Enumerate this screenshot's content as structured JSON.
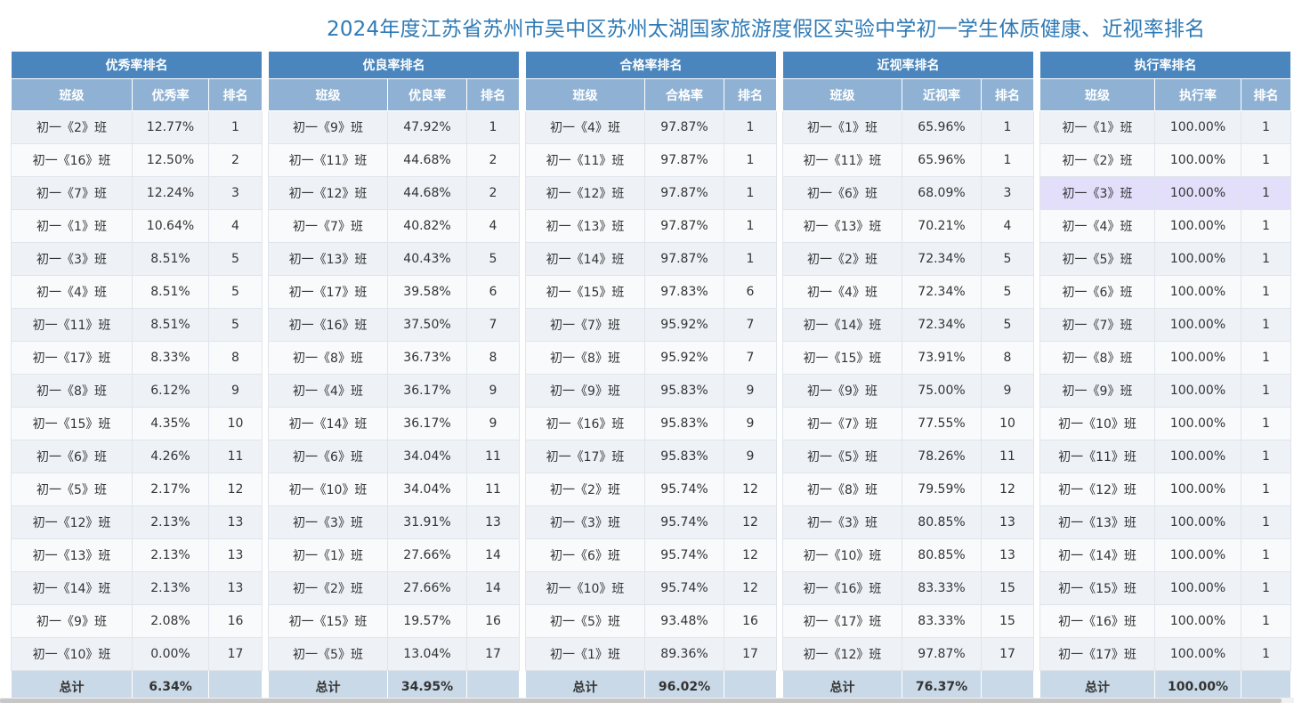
{
  "title": "2024年度江苏省苏州市吴中区苏州太湖国家旅游度假区实验中学初一学生体质健康、近视率排名",
  "total_label": "总计",
  "panels": [
    {
      "caption": "优秀率排名",
      "headers": [
        "班级",
        "优秀率",
        "排名"
      ],
      "rows": [
        [
          "初一《2》班",
          "12.77%",
          "1"
        ],
        [
          "初一《16》班",
          "12.50%",
          "2"
        ],
        [
          "初一《7》班",
          "12.24%",
          "3"
        ],
        [
          "初一《1》班",
          "10.64%",
          "4"
        ],
        [
          "初一《3》班",
          "8.51%",
          "5"
        ],
        [
          "初一《4》班",
          "8.51%",
          "5"
        ],
        [
          "初一《11》班",
          "8.51%",
          "5"
        ],
        [
          "初一《17》班",
          "8.33%",
          "8"
        ],
        [
          "初一《8》班",
          "6.12%",
          "9"
        ],
        [
          "初一《15》班",
          "4.35%",
          "10"
        ],
        [
          "初一《6》班",
          "4.26%",
          "11"
        ],
        [
          "初一《5》班",
          "2.17%",
          "12"
        ],
        [
          "初一《12》班",
          "2.13%",
          "13"
        ],
        [
          "初一《13》班",
          "2.13%",
          "13"
        ],
        [
          "初一《14》班",
          "2.13%",
          "13"
        ],
        [
          "初一《9》班",
          "2.08%",
          "16"
        ],
        [
          "初一《10》班",
          "0.00%",
          "17"
        ]
      ],
      "total": "6.34%"
    },
    {
      "caption": "优良率排名",
      "headers": [
        "班级",
        "优良率",
        "排名"
      ],
      "rows": [
        [
          "初一《9》班",
          "47.92%",
          "1"
        ],
        [
          "初一《11》班",
          "44.68%",
          "2"
        ],
        [
          "初一《12》班",
          "44.68%",
          "2"
        ],
        [
          "初一《7》班",
          "40.82%",
          "4"
        ],
        [
          "初一《13》班",
          "40.43%",
          "5"
        ],
        [
          "初一《17》班",
          "39.58%",
          "6"
        ],
        [
          "初一《16》班",
          "37.50%",
          "7"
        ],
        [
          "初一《8》班",
          "36.73%",
          "8"
        ],
        [
          "初一《4》班",
          "36.17%",
          "9"
        ],
        [
          "初一《14》班",
          "36.17%",
          "9"
        ],
        [
          "初一《6》班",
          "34.04%",
          "11"
        ],
        [
          "初一《10》班",
          "34.04%",
          "11"
        ],
        [
          "初一《3》班",
          "31.91%",
          "13"
        ],
        [
          "初一《1》班",
          "27.66%",
          "14"
        ],
        [
          "初一《2》班",
          "27.66%",
          "14"
        ],
        [
          "初一《15》班",
          "19.57%",
          "16"
        ],
        [
          "初一《5》班",
          "13.04%",
          "17"
        ]
      ],
      "total": "34.95%"
    },
    {
      "caption": "合格率排名",
      "headers": [
        "班级",
        "合格率",
        "排名"
      ],
      "rows": [
        [
          "初一《4》班",
          "97.87%",
          "1"
        ],
        [
          "初一《11》班",
          "97.87%",
          "1"
        ],
        [
          "初一《12》班",
          "97.87%",
          "1"
        ],
        [
          "初一《13》班",
          "97.87%",
          "1"
        ],
        [
          "初一《14》班",
          "97.87%",
          "1"
        ],
        [
          "初一《15》班",
          "97.83%",
          "6"
        ],
        [
          "初一《7》班",
          "95.92%",
          "7"
        ],
        [
          "初一《8》班",
          "95.92%",
          "7"
        ],
        [
          "初一《9》班",
          "95.83%",
          "9"
        ],
        [
          "初一《16》班",
          "95.83%",
          "9"
        ],
        [
          "初一《17》班",
          "95.83%",
          "9"
        ],
        [
          "初一《2》班",
          "95.74%",
          "12"
        ],
        [
          "初一《3》班",
          "95.74%",
          "12"
        ],
        [
          "初一《6》班",
          "95.74%",
          "12"
        ],
        [
          "初一《10》班",
          "95.74%",
          "12"
        ],
        [
          "初一《5》班",
          "93.48%",
          "16"
        ],
        [
          "初一《1》班",
          "89.36%",
          "17"
        ]
      ],
      "total": "96.02%"
    },
    {
      "caption": "近视率排名",
      "headers": [
        "班级",
        "近视率",
        "排名"
      ],
      "rows": [
        [
          "初一《1》班",
          "65.96%",
          "1"
        ],
        [
          "初一《11》班",
          "65.96%",
          "1"
        ],
        [
          "初一《6》班",
          "68.09%",
          "3"
        ],
        [
          "初一《13》班",
          "70.21%",
          "4"
        ],
        [
          "初一《2》班",
          "72.34%",
          "5"
        ],
        [
          "初一《4》班",
          "72.34%",
          "5"
        ],
        [
          "初一《14》班",
          "72.34%",
          "5"
        ],
        [
          "初一《15》班",
          "73.91%",
          "8"
        ],
        [
          "初一《9》班",
          "75.00%",
          "9"
        ],
        [
          "初一《7》班",
          "77.55%",
          "10"
        ],
        [
          "初一《5》班",
          "78.26%",
          "11"
        ],
        [
          "初一《8》班",
          "79.59%",
          "12"
        ],
        [
          "初一《3》班",
          "80.85%",
          "13"
        ],
        [
          "初一《10》班",
          "80.85%",
          "13"
        ],
        [
          "初一《16》班",
          "83.33%",
          "15"
        ],
        [
          "初一《17》班",
          "83.33%",
          "15"
        ],
        [
          "初一《12》班",
          "97.87%",
          "17"
        ]
      ],
      "total": "76.37%"
    },
    {
      "caption": "执行率排名",
      "headers": [
        "班级",
        "执行率",
        "排名"
      ],
      "rows": [
        [
          "初一《1》班",
          "100.00%",
          "1"
        ],
        [
          "初一《2》班",
          "100.00%",
          "1"
        ],
        [
          "初一《3》班",
          "100.00%",
          "1"
        ],
        [
          "初一《4》班",
          "100.00%",
          "1"
        ],
        [
          "初一《5》班",
          "100.00%",
          "1"
        ],
        [
          "初一《6》班",
          "100.00%",
          "1"
        ],
        [
          "初一《7》班",
          "100.00%",
          "1"
        ],
        [
          "初一《8》班",
          "100.00%",
          "1"
        ],
        [
          "初一《9》班",
          "100.00%",
          "1"
        ],
        [
          "初一《10》班",
          "100.00%",
          "1"
        ],
        [
          "初一《11》班",
          "100.00%",
          "1"
        ],
        [
          "初一《12》班",
          "100.00%",
          "1"
        ],
        [
          "初一《13》班",
          "100.00%",
          "1"
        ],
        [
          "初一《14》班",
          "100.00%",
          "1"
        ],
        [
          "初一《15》班",
          "100.00%",
          "1"
        ],
        [
          "初一《16》班",
          "100.00%",
          "1"
        ],
        [
          "初一《17》班",
          "100.00%",
          "1"
        ]
      ],
      "total": "100.00%"
    }
  ],
  "highlight": {
    "panel": 4,
    "row": 2
  },
  "colors": {
    "caption_bg": "#4a86bd",
    "header_bg": "#8fb2d4",
    "title": "#2f7ab5",
    "highlight": "#e3dffb"
  }
}
